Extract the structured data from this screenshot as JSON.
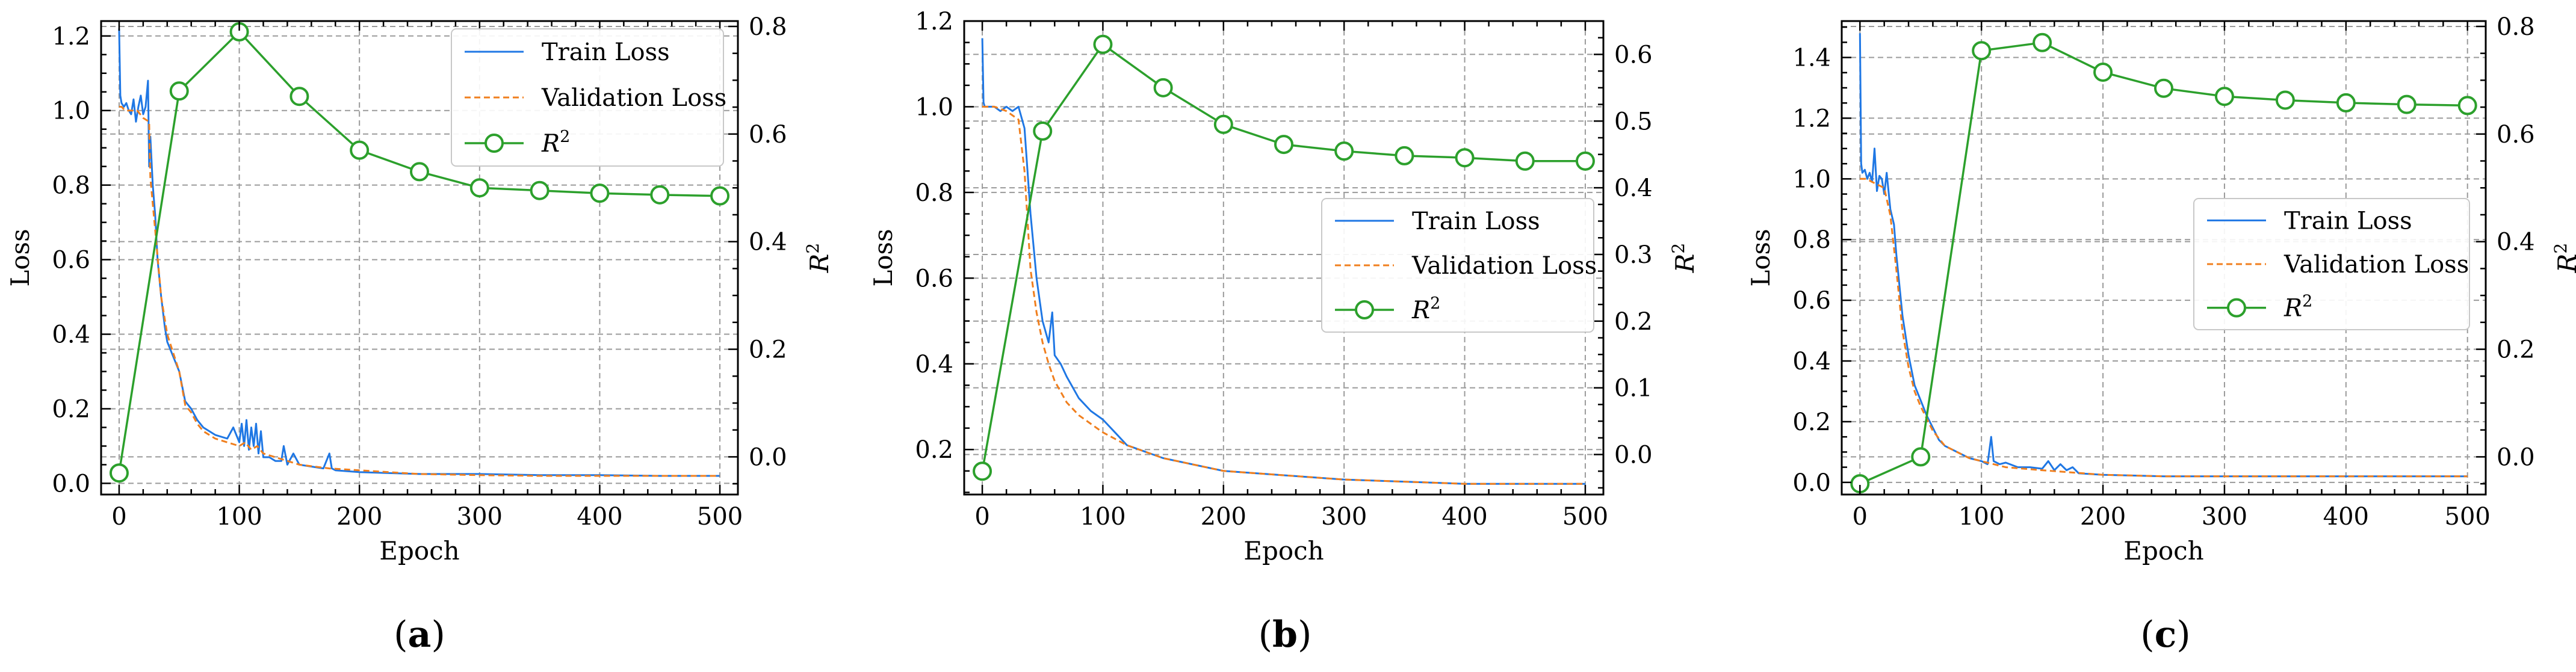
{
  "chart_data": [
    {
      "id": "a",
      "caption": "a",
      "type": "line",
      "xlabel": "Epoch",
      "ylabel": "Loss",
      "y2label": "R",
      "y2label_sup": "2",
      "xlim": [
        -15,
        515
      ],
      "ylim": [
        -0.03,
        1.24
      ],
      "y2lim": [
        -0.07,
        0.81
      ],
      "xticks": [
        0,
        100,
        200,
        300,
        400,
        500
      ],
      "yticks": [
        0.0,
        0.2,
        0.4,
        0.6,
        0.8,
        1.0,
        1.2
      ],
      "y2ticks": [
        0.0,
        0.2,
        0.4,
        0.6,
        0.8
      ],
      "legend_position": "upper-right",
      "legend": {
        "train": "Train Loss",
        "val": "Validation Loss",
        "r2": "R",
        "r2_sup": "2"
      },
      "series": [
        {
          "name": "Train Loss",
          "axis": "left",
          "color": "#1f77e4",
          "x": [
            0,
            1,
            2,
            4,
            6,
            8,
            10,
            12,
            14,
            16,
            18,
            20,
            22,
            24,
            25,
            26,
            28,
            30,
            32,
            35,
            38,
            40,
            45,
            50,
            55,
            60,
            65,
            70,
            80,
            90,
            95,
            100,
            102,
            104,
            106,
            108,
            110,
            112,
            114,
            116,
            118,
            120,
            125,
            130,
            135,
            137,
            140,
            145,
            150,
            160,
            170,
            175,
            177,
            180,
            200,
            250,
            300,
            350,
            400,
            450,
            500
          ],
          "y": [
            1.22,
            1.04,
            1.02,
            1.01,
            1.02,
            1.0,
            0.99,
            1.03,
            0.97,
            1.01,
            1.04,
            0.99,
            1.01,
            1.08,
            0.85,
            0.93,
            0.8,
            0.72,
            0.6,
            0.5,
            0.42,
            0.38,
            0.34,
            0.3,
            0.22,
            0.2,
            0.17,
            0.15,
            0.13,
            0.12,
            0.15,
            0.11,
            0.16,
            0.1,
            0.17,
            0.09,
            0.15,
            0.1,
            0.16,
            0.08,
            0.14,
            0.07,
            0.07,
            0.06,
            0.06,
            0.1,
            0.05,
            0.08,
            0.05,
            0.045,
            0.04,
            0.08,
            0.04,
            0.035,
            0.03,
            0.025,
            0.025,
            0.022,
            0.022,
            0.02,
            0.02
          ]
        },
        {
          "name": "Validation Loss",
          "axis": "left",
          "color": "#f07f1e",
          "dash": true,
          "x": [
            0,
            2,
            5,
            10,
            15,
            20,
            25,
            26,
            30,
            35,
            40,
            45,
            50,
            55,
            60,
            65,
            70,
            80,
            90,
            100,
            105,
            110,
            115,
            120,
            130,
            140,
            150,
            175,
            200,
            250,
            300,
            350,
            400,
            450,
            500
          ],
          "y": [
            1.01,
            1.01,
            1.0,
            1.0,
            1.0,
            0.98,
            0.97,
            0.82,
            0.68,
            0.5,
            0.4,
            0.35,
            0.3,
            0.21,
            0.19,
            0.16,
            0.14,
            0.12,
            0.11,
            0.1,
            0.11,
            0.09,
            0.1,
            0.08,
            0.07,
            0.06,
            0.05,
            0.04,
            0.035,
            0.025,
            0.022,
            0.02,
            0.02,
            0.02,
            0.02
          ]
        },
        {
          "name": "R2",
          "axis": "right",
          "color": "#2ca02c",
          "markers": true,
          "x": [
            0,
            50,
            100,
            150,
            200,
            250,
            300,
            350,
            400,
            450,
            500
          ],
          "y": [
            -0.03,
            0.68,
            0.79,
            0.67,
            0.57,
            0.53,
            0.5,
            0.495,
            0.49,
            0.487,
            0.485
          ]
        }
      ]
    },
    {
      "id": "b",
      "caption": "b",
      "type": "line",
      "xlabel": "Epoch",
      "ylabel": "Loss",
      "y2label": "R",
      "y2label_sup": "2",
      "xlim": [
        -15,
        515
      ],
      "ylim": [
        0.095,
        1.2
      ],
      "y2lim": [
        -0.06,
        0.65
      ],
      "xticks": [
        0,
        100,
        200,
        300,
        400,
        500
      ],
      "yticks": [
        0.2,
        0.4,
        0.6,
        0.8,
        1.0,
        1.2
      ],
      "y2ticks": [
        0.0,
        0.1,
        0.2,
        0.3,
        0.4,
        0.5,
        0.6
      ],
      "legend_position": "center-right",
      "legend": {
        "train": "Train Loss",
        "val": "Validation Loss",
        "r2": "R",
        "r2_sup": "2"
      },
      "series": [
        {
          "name": "Train Loss",
          "axis": "left",
          "color": "#1f77e4",
          "x": [
            0,
            1,
            2,
            5,
            10,
            15,
            20,
            25,
            30,
            35,
            40,
            45,
            50,
            55,
            58,
            60,
            65,
            70,
            80,
            90,
            100,
            110,
            120,
            130,
            150,
            200,
            250,
            300,
            350,
            400,
            450,
            500
          ],
          "y": [
            1.16,
            1.01,
            1.0,
            1.0,
            1.0,
            0.99,
            1.0,
            0.99,
            1.0,
            0.95,
            0.75,
            0.6,
            0.5,
            0.45,
            0.52,
            0.42,
            0.4,
            0.37,
            0.32,
            0.29,
            0.27,
            0.24,
            0.21,
            0.2,
            0.18,
            0.15,
            0.14,
            0.13,
            0.125,
            0.12,
            0.12,
            0.12
          ]
        },
        {
          "name": "Validation Loss",
          "axis": "left",
          "color": "#f07f1e",
          "dash": true,
          "x": [
            0,
            5,
            10,
            20,
            30,
            35,
            40,
            45,
            50,
            55,
            60,
            70,
            80,
            90,
            100,
            120,
            150,
            200,
            250,
            300,
            350,
            400,
            450,
            500
          ],
          "y": [
            1.0,
            1.0,
            1.0,
            0.99,
            0.97,
            0.85,
            0.62,
            0.52,
            0.45,
            0.4,
            0.36,
            0.31,
            0.28,
            0.26,
            0.24,
            0.21,
            0.18,
            0.15,
            0.14,
            0.13,
            0.125,
            0.12,
            0.12,
            0.12
          ]
        },
        {
          "name": "R2",
          "axis": "right",
          "color": "#2ca02c",
          "markers": true,
          "x": [
            0,
            50,
            100,
            150,
            200,
            250,
            300,
            350,
            400,
            450,
            500
          ],
          "y": [
            -0.025,
            0.485,
            0.615,
            0.55,
            0.495,
            0.465,
            0.455,
            0.448,
            0.445,
            0.44,
            0.44
          ]
        }
      ]
    },
    {
      "id": "c",
      "caption": "c",
      "type": "line",
      "xlabel": "Epoch",
      "ylabel": "Loss",
      "y2label": "R",
      "y2label_sup": "2",
      "xlim": [
        -15,
        515
      ],
      "ylim": [
        -0.04,
        1.52
      ],
      "y2lim": [
        -0.07,
        0.81
      ],
      "xticks": [
        0,
        100,
        200,
        300,
        400,
        500
      ],
      "yticks": [
        0.0,
        0.2,
        0.4,
        0.6,
        0.8,
        1.0,
        1.2,
        1.4
      ],
      "y2ticks": [
        0.0,
        0.2,
        0.4,
        0.6,
        0.8
      ],
      "legend_position": "center-right",
      "legend": {
        "train": "Train Loss",
        "val": "Validation Loss",
        "r2": "R",
        "r2_sup": "2"
      },
      "series": [
        {
          "name": "Train Loss",
          "axis": "left",
          "color": "#1f77e4",
          "x": [
            0,
            1,
            2,
            4,
            6,
            8,
            10,
            12,
            14,
            16,
            18,
            20,
            22,
            25,
            28,
            30,
            35,
            40,
            45,
            50,
            55,
            60,
            65,
            70,
            80,
            90,
            100,
            105,
            108,
            110,
            115,
            120,
            130,
            140,
            150,
            155,
            160,
            165,
            170,
            175,
            180,
            200,
            250,
            300,
            350,
            400,
            450,
            500
          ],
          "y": [
            1.48,
            1.05,
            1.02,
            1.03,
            1.0,
            1.02,
            0.99,
            1.1,
            0.96,
            1.01,
            1.0,
            0.95,
            1.02,
            0.9,
            0.85,
            0.75,
            0.55,
            0.42,
            0.32,
            0.27,
            0.22,
            0.18,
            0.14,
            0.12,
            0.1,
            0.08,
            0.07,
            0.06,
            0.15,
            0.07,
            0.06,
            0.065,
            0.05,
            0.05,
            0.045,
            0.07,
            0.04,
            0.06,
            0.04,
            0.05,
            0.03,
            0.025,
            0.02,
            0.02,
            0.02,
            0.02,
            0.02,
            0.02
          ]
        },
        {
          "name": "Validation Loss",
          "axis": "left",
          "color": "#f07f1e",
          "dash": true,
          "x": [
            0,
            5,
            10,
            15,
            20,
            25,
            30,
            35,
            40,
            45,
            50,
            60,
            70,
            80,
            90,
            100,
            110,
            120,
            150,
            200,
            250,
            300,
            350,
            400,
            450,
            500
          ],
          "y": [
            1.0,
            1.0,
            0.99,
            0.98,
            0.97,
            0.88,
            0.7,
            0.5,
            0.38,
            0.3,
            0.25,
            0.17,
            0.12,
            0.1,
            0.08,
            0.07,
            0.06,
            0.05,
            0.04,
            0.025,
            0.02,
            0.02,
            0.02,
            0.02,
            0.02,
            0.02
          ]
        },
        {
          "name": "R2",
          "axis": "right",
          "color": "#2ca02c",
          "markers": true,
          "x": [
            0,
            50,
            100,
            150,
            200,
            250,
            300,
            350,
            400,
            450,
            500
          ],
          "y": [
            -0.05,
            0.0,
            0.755,
            0.77,
            0.715,
            0.685,
            0.67,
            0.663,
            0.658,
            0.655,
            0.653
          ]
        }
      ]
    }
  ]
}
